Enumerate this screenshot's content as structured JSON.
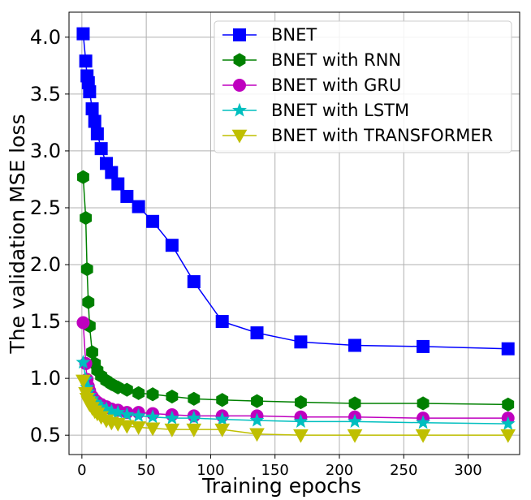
{
  "chart_data": {
    "type": "line",
    "xlabel": "Training epochs",
    "ylabel": "The validation MSE loss",
    "xlim": [
      -10,
      340
    ],
    "ylim": [
      0.33,
      4.22
    ],
    "xticks": [
      0,
      50,
      100,
      150,
      200,
      250,
      300
    ],
    "yticks": [
      0.5,
      1.0,
      1.5,
      2.0,
      2.5,
      3.0,
      3.5,
      4.0
    ],
    "ytick_labels": [
      "0.5",
      "1.0",
      "1.5",
      "2.0",
      "2.5",
      "3.0",
      "3.5",
      "4.0"
    ],
    "grid": true,
    "legend_position": "top-right",
    "series": [
      {
        "name": "BNET",
        "color": "#0000ff",
        "marker": "square",
        "points": [
          [
            1,
            4.03
          ],
          [
            3,
            3.79
          ],
          [
            4,
            3.66
          ],
          [
            5,
            3.6
          ],
          [
            6,
            3.52
          ],
          [
            8,
            3.37
          ],
          [
            10,
            3.26
          ],
          [
            12,
            3.15
          ],
          [
            15,
            3.02
          ],
          [
            19,
            2.89
          ],
          [
            23,
            2.81
          ],
          [
            28,
            2.71
          ],
          [
            35,
            2.6
          ],
          [
            44,
            2.51
          ],
          [
            55,
            2.38
          ],
          [
            70,
            2.17
          ],
          [
            87,
            1.85
          ],
          [
            109,
            1.5
          ],
          [
            136,
            1.4
          ],
          [
            170,
            1.32
          ],
          [
            212,
            1.29
          ],
          [
            265,
            1.28
          ],
          [
            331,
            1.26
          ]
        ]
      },
      {
        "name": "BNET with RNN",
        "color": "#008000",
        "marker": "hexagon",
        "points": [
          [
            1,
            2.77
          ],
          [
            3,
            2.41
          ],
          [
            4,
            1.96
          ],
          [
            5,
            1.67
          ],
          [
            6,
            1.46
          ],
          [
            8,
            1.23
          ],
          [
            10,
            1.13
          ],
          [
            12,
            1.07
          ],
          [
            15,
            1.02
          ],
          [
            19,
            0.98
          ],
          [
            23,
            0.95
          ],
          [
            28,
            0.92
          ],
          [
            35,
            0.9
          ],
          [
            44,
            0.87
          ],
          [
            55,
            0.86
          ],
          [
            70,
            0.84
          ],
          [
            87,
            0.82
          ],
          [
            109,
            0.81
          ],
          [
            136,
            0.8
          ],
          [
            170,
            0.79
          ],
          [
            212,
            0.78
          ],
          [
            265,
            0.78
          ],
          [
            331,
            0.77
          ]
        ]
      },
      {
        "name": "BNET with GRU",
        "color": "#bf00bf",
        "marker": "circle",
        "points": [
          [
            1,
            1.49
          ],
          [
            3,
            1.13
          ],
          [
            4,
            0.99
          ],
          [
            5,
            0.93
          ],
          [
            6,
            0.89
          ],
          [
            8,
            0.84
          ],
          [
            10,
            0.81
          ],
          [
            12,
            0.79
          ],
          [
            15,
            0.77
          ],
          [
            19,
            0.75
          ],
          [
            23,
            0.73
          ],
          [
            28,
            0.72
          ],
          [
            35,
            0.7
          ],
          [
            44,
            0.7
          ],
          [
            55,
            0.69
          ],
          [
            70,
            0.68
          ],
          [
            87,
            0.67
          ],
          [
            109,
            0.67
          ],
          [
            136,
            0.67
          ],
          [
            170,
            0.66
          ],
          [
            212,
            0.66
          ],
          [
            265,
            0.65
          ],
          [
            331,
            0.65
          ]
        ]
      },
      {
        "name": "BNET with LSTM",
        "color": "#00bfbf",
        "marker": "star",
        "points": [
          [
            1,
            1.14
          ],
          [
            3,
            0.99
          ],
          [
            4,
            0.92
          ],
          [
            5,
            0.88
          ],
          [
            6,
            0.85
          ],
          [
            8,
            0.82
          ],
          [
            10,
            0.79
          ],
          [
            12,
            0.77
          ],
          [
            15,
            0.75
          ],
          [
            19,
            0.73
          ],
          [
            23,
            0.71
          ],
          [
            28,
            0.7
          ],
          [
            35,
            0.68
          ],
          [
            44,
            0.67
          ],
          [
            55,
            0.66
          ],
          [
            70,
            0.65
          ],
          [
            87,
            0.65
          ],
          [
            109,
            0.64
          ],
          [
            136,
            0.63
          ],
          [
            170,
            0.62
          ],
          [
            212,
            0.62
          ],
          [
            265,
            0.61
          ],
          [
            331,
            0.6
          ]
        ]
      },
      {
        "name": "BNET with TRANSFORMER",
        "color": "#bfbf00",
        "marker": "triangle-down",
        "points": [
          [
            1,
            0.98
          ],
          [
            3,
            0.87
          ],
          [
            4,
            0.82
          ],
          [
            5,
            0.79
          ],
          [
            6,
            0.77
          ],
          [
            8,
            0.74
          ],
          [
            10,
            0.71
          ],
          [
            12,
            0.69
          ],
          [
            15,
            0.66
          ],
          [
            19,
            0.63
          ],
          [
            23,
            0.61
          ],
          [
            28,
            0.6
          ],
          [
            35,
            0.58
          ],
          [
            44,
            0.57
          ],
          [
            55,
            0.56
          ],
          [
            70,
            0.55
          ],
          [
            87,
            0.55
          ],
          [
            109,
            0.55
          ],
          [
            136,
            0.51
          ],
          [
            170,
            0.5
          ],
          [
            212,
            0.5
          ],
          [
            265,
            0.5
          ],
          [
            331,
            0.5
          ]
        ]
      }
    ]
  }
}
